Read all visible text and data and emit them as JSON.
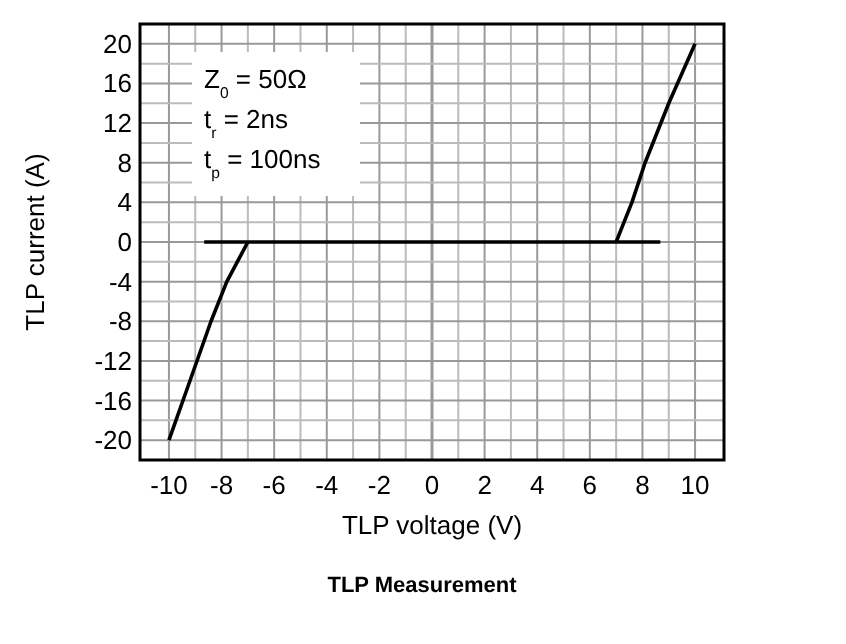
{
  "chart_data": {
    "type": "line",
    "title": "TLP Measurement",
    "xlabel": "TLP voltage (V)",
    "ylabel": "TLP current (A)",
    "annotations": [
      "Z$_{0}$ = 50Ω",
      "t$_{r}$ = 2ns",
      "t$_{p}$ = 100ns"
    ],
    "series": [
      {
        "color": "#000000",
        "x": [
          -10,
          -9.2,
          -8.4,
          -7.8,
          -7.3,
          -7
        ],
        "values": [
          -20,
          -14,
          -8,
          -4,
          -1.5,
          0
        ]
      },
      {
        "color": "#000000",
        "x": [
          -8.66,
          8.68
        ],
        "values": [
          0,
          0
        ]
      },
      {
        "color": "#000000",
        "x": [
          7,
          7.3,
          7.6,
          8.1,
          9,
          10
        ],
        "values": [
          0,
          2,
          4,
          8,
          14,
          20
        ]
      }
    ],
    "xlim": [
      -11.1,
      11.1
    ],
    "ylim": [
      -22,
      22
    ],
    "xticks": [
      -10,
      {
        "value": -9,
        "label": null
      },
      -8,
      {
        "value": -7,
        "label": null
      },
      -6,
      {
        "value": -5,
        "label": null
      },
      -4,
      {
        "value": -3,
        "label": null
      },
      -2,
      {
        "value": -1,
        "label": null
      },
      0,
      {
        "value": 1,
        "label": null
      },
      2,
      {
        "value": 3,
        "label": null
      },
      4,
      {
        "value": 5,
        "label": null
      },
      6,
      {
        "value": 7,
        "label": null
      },
      8,
      {
        "value": 9,
        "label": null
      },
      10
    ],
    "yticks": [
      -20,
      {
        "value": -18,
        "label": null
      },
      -16,
      {
        "value": -14,
        "label": null
      },
      -12,
      {
        "value": -10,
        "label": null
      },
      -8,
      {
        "value": -6,
        "label": null
      },
      -4,
      {
        "value": -2,
        "label": null
      },
      0,
      {
        "value": 2,
        "label": null
      },
      4,
      {
        "value": 6,
        "label": null
      },
      8,
      {
        "value": 10,
        "label": null
      },
      12,
      {
        "value": 14,
        "label": null
      },
      16,
      {
        "value": 18,
        "label": null
      },
      20
    ],
    "grid": true,
    "marker": "none",
    "line_style": "solid"
  }
}
